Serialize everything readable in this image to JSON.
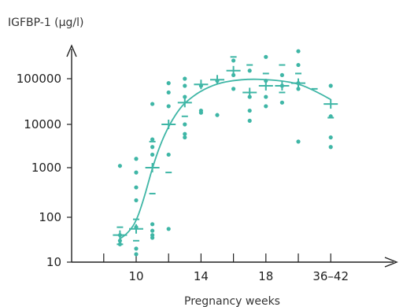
{
  "chart_data": {
    "type": "scatter",
    "title": "",
    "ylabel": "IGFBP-1 (µg/l)",
    "xlabel": "Pregnancy weeks",
    "y_scale": "log",
    "ylim": [
      10,
      300000
    ],
    "xlim": [
      6,
      46
    ],
    "x_ticks": [
      {
        "value": 10,
        "label": "10"
      },
      {
        "value": 14,
        "label": "14"
      },
      {
        "value": 18,
        "label": "18"
      },
      {
        "value": 22,
        "label": "36–42"
      }
    ],
    "x_minor_ticks": [
      8,
      12,
      16,
      20
    ],
    "y_ticks": [
      {
        "value": 10,
        "label": "10"
      },
      {
        "value": 100,
        "label": "100"
      },
      {
        "value": 1000,
        "label": "1000"
      },
      {
        "value": 10000,
        "label": "10000"
      },
      {
        "value": 100000,
        "label": "100000"
      }
    ],
    "colors": {
      "series": "#3fb6a6",
      "axis": "#222222"
    },
    "points": [
      [
        9,
        40
      ],
      [
        9,
        1100
      ],
      [
        9,
        25
      ],
      [
        9,
        30
      ],
      [
        10,
        800
      ],
      [
        10,
        400
      ],
      [
        10,
        220
      ],
      [
        10,
        60
      ],
      [
        10,
        20
      ],
      [
        10,
        15
      ],
      [
        10,
        1600
      ],
      [
        11,
        4500
      ],
      [
        11,
        3000
      ],
      [
        11,
        2000
      ],
      [
        11,
        28000
      ],
      [
        11,
        70
      ],
      [
        11,
        50
      ],
      [
        11,
        40
      ],
      [
        11,
        35
      ],
      [
        12,
        80000
      ],
      [
        12,
        50000
      ],
      [
        12,
        25000
      ],
      [
        12,
        2000
      ],
      [
        12,
        55
      ],
      [
        13,
        100000
      ],
      [
        13,
        70000
      ],
      [
        13,
        40000
      ],
      [
        13,
        10000
      ],
      [
        13,
        6000
      ],
      [
        13,
        5000
      ],
      [
        14,
        70000
      ],
      [
        14,
        20000
      ],
      [
        14,
        18000
      ],
      [
        15,
        90000
      ],
      [
        15,
        16000
      ],
      [
        16,
        250000
      ],
      [
        16,
        120000
      ],
      [
        16,
        60000
      ],
      [
        17,
        150000
      ],
      [
        17,
        40000
      ],
      [
        17,
        20000
      ],
      [
        17,
        12000
      ],
      [
        18,
        300000
      ],
      [
        18,
        90000
      ],
      [
        18,
        40000
      ],
      [
        18,
        25000
      ],
      [
        19,
        120000
      ],
      [
        19,
        70000
      ],
      [
        19,
        30000
      ],
      [
        20,
        400000
      ],
      [
        20,
        200000
      ],
      [
        20,
        80000
      ],
      [
        20,
        60000
      ],
      [
        20,
        4000
      ],
      [
        22,
        70000
      ],
      [
        22,
        3000
      ],
      [
        22,
        5000
      ],
      [
        22,
        15000
      ]
    ],
    "means": [
      [
        9,
        40
      ],
      [
        10,
        55
      ],
      [
        11,
        1000
      ],
      [
        12,
        10000
      ],
      [
        13,
        30000
      ],
      [
        14,
        75000
      ],
      [
        15,
        95000
      ],
      [
        16,
        150000
      ],
      [
        17,
        50000
      ],
      [
        18,
        70000
      ],
      [
        19,
        70000
      ],
      [
        20,
        80000
      ],
      [
        22,
        28000
      ]
    ],
    "dash_marks": [
      [
        9,
        60
      ],
      [
        9,
        25
      ],
      [
        10,
        30
      ],
      [
        10,
        90
      ],
      [
        11,
        4000
      ],
      [
        11,
        300
      ],
      [
        12,
        800
      ],
      [
        13,
        15000
      ],
      [
        16,
        300000
      ],
      [
        17,
        200000
      ],
      [
        18,
        130000
      ],
      [
        19,
        50000
      ],
      [
        19,
        200000
      ],
      [
        20,
        130000
      ],
      [
        21,
        60000
      ],
      [
        22,
        14000
      ]
    ],
    "fit_curve": [
      [
        9,
        33
      ],
      [
        9.5,
        45
      ],
      [
        10,
        80
      ],
      [
        10.5,
        250
      ],
      [
        11,
        1000
      ],
      [
        11.5,
        3500
      ],
      [
        12,
        9000
      ],
      [
        12.5,
        18000
      ],
      [
        13,
        30000
      ],
      [
        14,
        55000
      ],
      [
        15,
        78000
      ],
      [
        16,
        92000
      ],
      [
        17,
        98000
      ],
      [
        18,
        96000
      ],
      [
        19,
        90000
      ],
      [
        20,
        78000
      ],
      [
        21,
        55000
      ],
      [
        22,
        35000
      ]
    ]
  }
}
